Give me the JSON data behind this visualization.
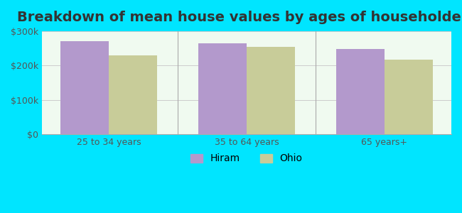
{
  "title": "Breakdown of mean house values by ages of householders",
  "categories": [
    "25 to 34 years",
    "35 to 64 years",
    "65 years+"
  ],
  "hiram_values": [
    270000,
    265000,
    248000
  ],
  "ohio_values": [
    230000,
    255000,
    218000
  ],
  "hiram_color": "#b399cc",
  "ohio_color": "#c8cc99",
  "background_outer": "#00e5ff",
  "background_inner": "#f0faf0",
  "ylim": [
    0,
    300000
  ],
  "yticks": [
    0,
    100000,
    200000,
    300000
  ],
  "ytick_labels": [
    "$0",
    "$100k",
    "$200k",
    "$300k"
  ],
  "legend_labels": [
    "Hiram",
    "Ohio"
  ],
  "bar_width": 0.35,
  "title_fontsize": 14,
  "tick_fontsize": 9,
  "legend_fontsize": 10
}
